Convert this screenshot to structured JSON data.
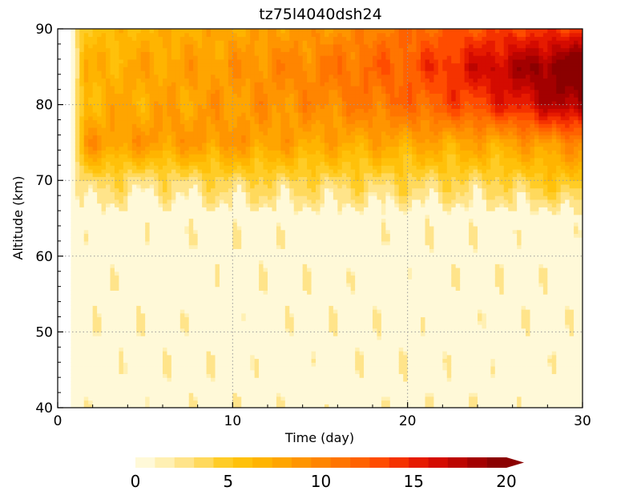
{
  "chart_data": {
    "type": "heatmap",
    "title": "tz75l4040dsh24",
    "xlabel": "Time (day)",
    "ylabel": "Altitude (km)",
    "xlim": [
      0,
      30
    ],
    "ylim": [
      40,
      90
    ],
    "x_ticks": [
      "0",
      "10",
      "20",
      "30"
    ],
    "y_ticks": [
      "40",
      "50",
      "60",
      "70",
      "80",
      "90"
    ],
    "grid": true,
    "colorbar": {
      "ticks": [
        "0",
        "5",
        "10",
        "15",
        "20"
      ],
      "min": 0,
      "max": 20,
      "extend": "max",
      "colors": [
        "#fff9d8",
        "#fff0b3",
        "#ffe48a",
        "#ffd95c",
        "#ffcc26",
        "#ffc10a",
        "#ffb400",
        "#ffa500",
        "#ff9500",
        "#ff8500",
        "#ff7500",
        "#ff6200",
        "#ff4c00",
        "#f53200",
        "#e61a00",
        "#d40b00",
        "#bc0500",
        "#a30000",
        "#8b0000"
      ]
    },
    "series": [
      {
        "day": 2,
        "alt_70": 3,
        "alt_75": 8,
        "alt_80": 6,
        "alt_85": 6,
        "alt_90": 5
      },
      {
        "day": 5,
        "alt_70": 2,
        "alt_75": 8,
        "alt_80": 7,
        "alt_85": 7,
        "alt_90": 6
      },
      {
        "day": 10,
        "alt_70": 3,
        "alt_75": 8,
        "alt_80": 8,
        "alt_85": 8,
        "alt_90": 7
      },
      {
        "day": 15,
        "alt_70": 3,
        "alt_75": 7,
        "alt_80": 9,
        "alt_85": 10,
        "alt_90": 8
      },
      {
        "day": 20,
        "alt_70": 3,
        "alt_75": 7,
        "alt_80": 11,
        "alt_85": 12,
        "alt_90": 11
      },
      {
        "day": 25,
        "alt_70": 3,
        "alt_75": 7,
        "alt_80": 14,
        "alt_85": 17,
        "alt_90": 13
      },
      {
        "day": 30,
        "alt_70": 5,
        "alt_75": 9,
        "alt_80": 19,
        "alt_85": 21,
        "alt_90": 14
      }
    ]
  }
}
